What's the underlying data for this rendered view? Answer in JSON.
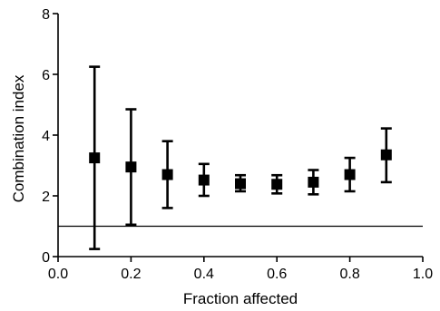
{
  "chart_data": {
    "type": "scatter",
    "title": "",
    "xlabel": "Fraction affected",
    "ylabel": "Combination index",
    "xlim": [
      0.0,
      1.0
    ],
    "ylim": [
      0,
      8
    ],
    "x_ticks": [
      "0.0",
      "0.2",
      "0.4",
      "0.6",
      "0.8",
      "1.0"
    ],
    "y_ticks": [
      "0",
      "2",
      "4",
      "6",
      "8"
    ],
    "grid": false,
    "reference_line_y": 1,
    "points": [
      {
        "x": 0.1,
        "y": 3.25,
        "err_low": 0.25,
        "err_high": 6.25
      },
      {
        "x": 0.2,
        "y": 2.95,
        "err_low": 1.05,
        "err_high": 4.85
      },
      {
        "x": 0.3,
        "y": 2.7,
        "err_low": 1.6,
        "err_high": 3.8
      },
      {
        "x": 0.4,
        "y": 2.52,
        "err_low": 2.0,
        "err_high": 3.05
      },
      {
        "x": 0.5,
        "y": 2.4,
        "err_low": 2.15,
        "err_high": 2.68
      },
      {
        "x": 0.6,
        "y": 2.38,
        "err_low": 2.08,
        "err_high": 2.68
      },
      {
        "x": 0.7,
        "y": 2.45,
        "err_low": 2.05,
        "err_high": 2.85
      },
      {
        "x": 0.8,
        "y": 2.7,
        "err_low": 2.15,
        "err_high": 3.25
      },
      {
        "x": 0.9,
        "y": 3.35,
        "err_low": 2.45,
        "err_high": 4.22
      }
    ]
  }
}
